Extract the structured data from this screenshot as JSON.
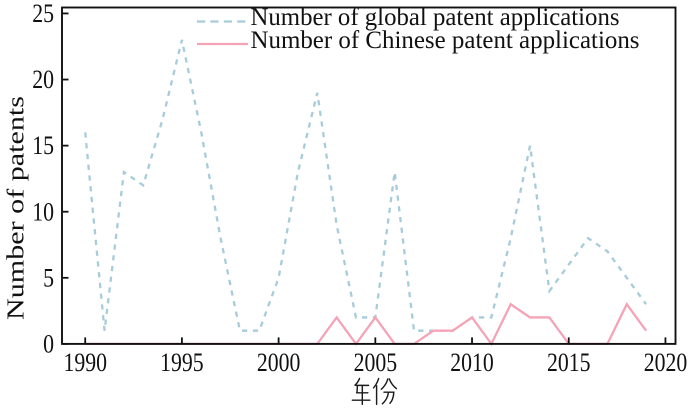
{
  "chart_data": {
    "type": "line",
    "title": "",
    "xlabel": "年份",
    "ylabel": "Number of patents",
    "x": [
      1990,
      1991,
      1992,
      1993,
      1994,
      1995,
      1996,
      1997,
      1998,
      1999,
      2000,
      2001,
      2002,
      2003,
      2004,
      2005,
      2006,
      2007,
      2008,
      2009,
      2010,
      2011,
      2012,
      2013,
      2014,
      2015,
      2016,
      2017,
      2018,
      2019
    ],
    "series": [
      {
        "name": "Number of global patent applications",
        "color": "#a7ccd9",
        "style": "dashed",
        "values": [
          16,
          1,
          13,
          12,
          17,
          23,
          16,
          8,
          1,
          1,
          5,
          13,
          19,
          9,
          2,
          2,
          13,
          1,
          1,
          1,
          2,
          2,
          8,
          15,
          4,
          6,
          8,
          7,
          5,
          3
        ]
      },
      {
        "name": "Number of Chinese patent applications",
        "color": "#f5a3b7",
        "style": "solid",
        "values": [
          0,
          0,
          0,
          0,
          0,
          0,
          0,
          0,
          0,
          0,
          0,
          0,
          0,
          2,
          0,
          2,
          0,
          0,
          1,
          1,
          2,
          0,
          3,
          2,
          2,
          0,
          0,
          0,
          3,
          1
        ]
      }
    ],
    "xticks": [
      1990,
      1995,
      2000,
      2005,
      2010,
      2015,
      2020
    ],
    "yticks": [
      0,
      5,
      10,
      15,
      20,
      25
    ],
    "xlim": [
      1988.8,
      2020.52
    ],
    "ylim": [
      0,
      25.45
    ],
    "grid": false,
    "legend_position": "top-center-inside",
    "axis_color": "#111111"
  }
}
